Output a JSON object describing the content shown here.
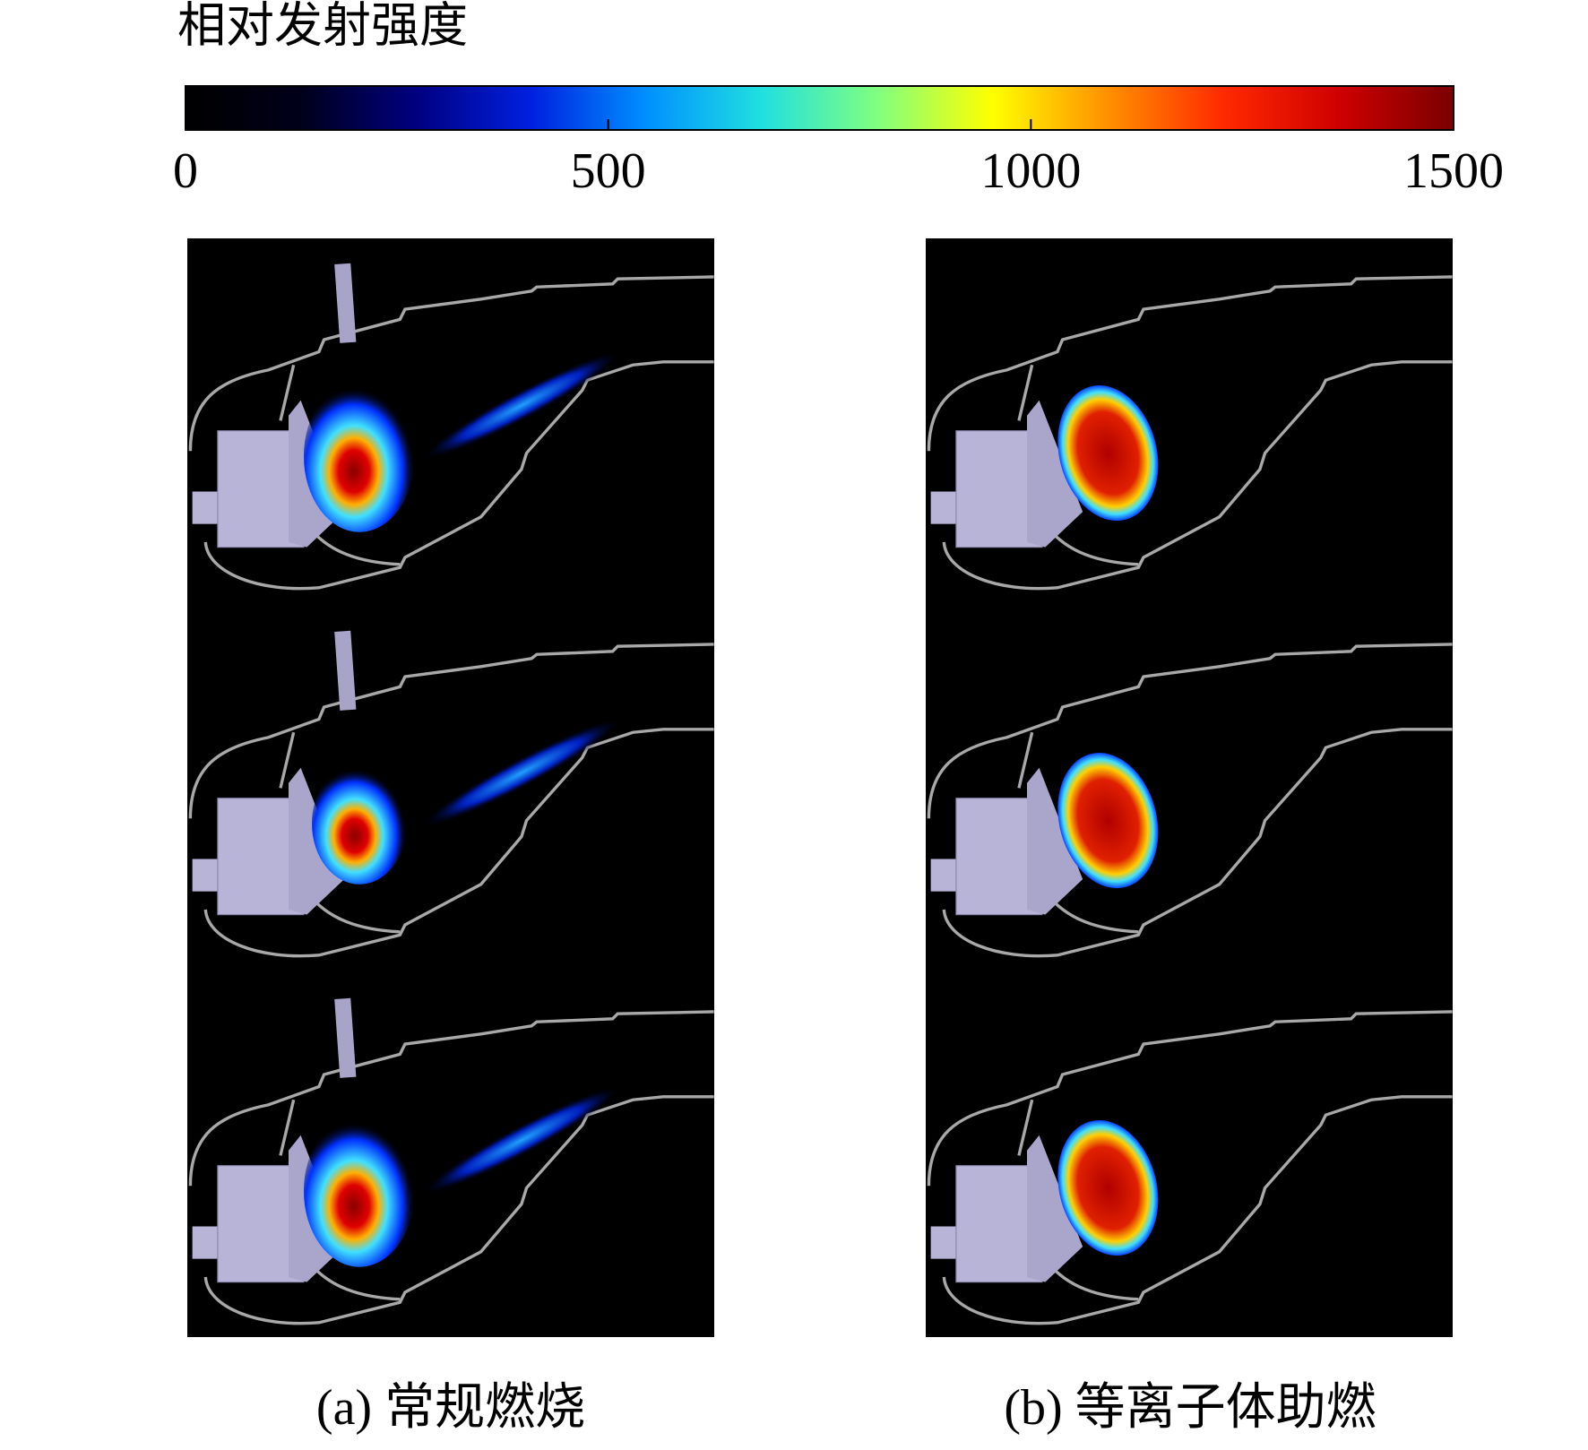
{
  "colorbar": {
    "title": "相对发射强度",
    "lim": [
      0,
      1500
    ],
    "ticks": [
      0,
      500,
      1000,
      1500
    ],
    "colormap": [
      "#000000",
      "#00001a",
      "#000080",
      "#0020e0",
      "#0090ff",
      "#20e0e0",
      "#80ff80",
      "#ffff00",
      "#ff9000",
      "#ff2a00",
      "#d00000",
      "#7a0000"
    ]
  },
  "panels": [
    {
      "caption": "(a) 常规燃烧"
    },
    {
      "caption": "(b) 等离子体助燃"
    }
  ]
}
